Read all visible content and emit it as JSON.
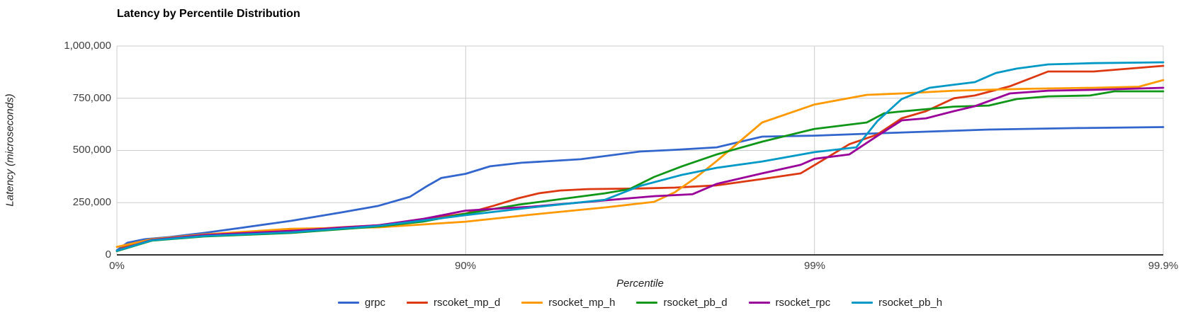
{
  "chart_data": {
    "type": "line",
    "title": "Latency by Percentile Distribution",
    "xlabel": "Percentile",
    "ylabel": "Latency (microseconds)",
    "x_scale": "hdr-percentile (position = log10(1/(1-p)) nines)",
    "xlim_nines": [
      0,
      3
    ],
    "ylim": [
      0,
      1000000
    ],
    "grid": true,
    "legend_position": "bottom",
    "axis_color": "#333333",
    "grid_color": "#cccccc",
    "xticks": [
      {
        "label": "0%",
        "nines": 0
      },
      {
        "label": "90%",
        "nines": 1
      },
      {
        "label": "99%",
        "nines": 2
      },
      {
        "label": "99.9%",
        "nines": 3
      }
    ],
    "yticks": [
      {
        "label": "0",
        "value": 0
      },
      {
        "label": "250,000",
        "value": 250000
      },
      {
        "label": "500,000",
        "value": 500000
      },
      {
        "label": "750,000",
        "value": 750000
      },
      {
        "label": "1,000,000",
        "value": 1000000
      }
    ],
    "series": [
      {
        "name": "grpc",
        "color": "#3366CC",
        "points": [
          [
            0,
            22000
          ],
          [
            0.03,
            58000
          ],
          [
            0.08,
            75000
          ],
          [
            0.15,
            85000
          ],
          [
            0.25,
            105000
          ],
          [
            0.35,
            128000
          ],
          [
            0.5,
            163000
          ],
          [
            0.65,
            205000
          ],
          [
            0.75,
            235000
          ],
          [
            0.84,
            278000
          ],
          [
            0.89,
            330000
          ],
          [
            0.93,
            368000
          ],
          [
            1,
            388000
          ],
          [
            1.07,
            424000
          ],
          [
            1.16,
            441000
          ],
          [
            1.33,
            458000
          ],
          [
            1.5,
            495000
          ],
          [
            1.6,
            503000
          ],
          [
            1.72,
            515000
          ],
          [
            1.85,
            566000
          ],
          [
            2,
            571000
          ],
          [
            2.2,
            583000
          ],
          [
            2.5,
            600000
          ],
          [
            2.75,
            607000
          ],
          [
            3,
            612000
          ]
        ]
      },
      {
        "name": "rscoket_mp_d",
        "color": "#DC3912",
        "points": [
          [
            0,
            18000
          ],
          [
            0.03,
            45000
          ],
          [
            0.1,
            72000
          ],
          [
            0.25,
            95000
          ],
          [
            0.5,
            118000
          ],
          [
            0.75,
            142000
          ],
          [
            0.88,
            170000
          ],
          [
            1,
            198000
          ],
          [
            1.08,
            235000
          ],
          [
            1.15,
            271000
          ],
          [
            1.21,
            295000
          ],
          [
            1.27,
            308000
          ],
          [
            1.35,
            315000
          ],
          [
            1.5,
            318000
          ],
          [
            1.6,
            322000
          ],
          [
            1.72,
            333000
          ],
          [
            1.85,
            363000
          ],
          [
            1.96,
            390000
          ],
          [
            2,
            430000
          ],
          [
            2.1,
            530000
          ],
          [
            2.18,
            576000
          ],
          [
            2.25,
            654000
          ],
          [
            2.32,
            688000
          ],
          [
            2.4,
            750000
          ],
          [
            2.46,
            763000
          ],
          [
            2.56,
            807000
          ],
          [
            2.67,
            878000
          ],
          [
            2.8,
            878000
          ],
          [
            3,
            905000
          ]
        ]
      },
      {
        "name": "rsocket_mp_h",
        "color": "#FF9900",
        "points": [
          [
            0,
            38000
          ],
          [
            0.1,
            75000
          ],
          [
            0.25,
            98000
          ],
          [
            0.5,
            125000
          ],
          [
            0.75,
            132000
          ],
          [
            1,
            159000
          ],
          [
            1.19,
            193000
          ],
          [
            1.4,
            227000
          ],
          [
            1.54,
            254000
          ],
          [
            1.6,
            300000
          ],
          [
            1.66,
            370000
          ],
          [
            1.72,
            450000
          ],
          [
            1.85,
            634000
          ],
          [
            2,
            720000
          ],
          [
            2.15,
            766000
          ],
          [
            2.25,
            773000
          ],
          [
            2.4,
            786000
          ],
          [
            2.6,
            795000
          ],
          [
            2.8,
            800000
          ],
          [
            2.93,
            805000
          ],
          [
            3,
            837000
          ]
        ]
      },
      {
        "name": "rsocket_pb_d",
        "color": "#109618",
        "points": [
          [
            0,
            18000
          ],
          [
            0.1,
            68000
          ],
          [
            0.25,
            88000
          ],
          [
            0.5,
            105000
          ],
          [
            0.75,
            136000
          ],
          [
            0.88,
            160000
          ],
          [
            1,
            197000
          ],
          [
            1.15,
            240000
          ],
          [
            1.29,
            271000
          ],
          [
            1.4,
            295000
          ],
          [
            1.47,
            315000
          ],
          [
            1.54,
            373000
          ],
          [
            1.62,
            424000
          ],
          [
            1.72,
            481000
          ],
          [
            1.85,
            542000
          ],
          [
            2,
            603000
          ],
          [
            2.15,
            634000
          ],
          [
            2.2,
            678000
          ],
          [
            2.24,
            685000
          ],
          [
            2.4,
            710000
          ],
          [
            2.5,
            715000
          ],
          [
            2.58,
            746000
          ],
          [
            2.67,
            759000
          ],
          [
            2.79,
            763000
          ],
          [
            2.86,
            783000
          ],
          [
            3,
            783000
          ]
        ]
      },
      {
        "name": "rsocket_rpc",
        "color": "#990099",
        "points": [
          [
            0,
            20000
          ],
          [
            0.1,
            72000
          ],
          [
            0.25,
            95000
          ],
          [
            0.5,
            115000
          ],
          [
            0.75,
            142000
          ],
          [
            0.88,
            173000
          ],
          [
            1,
            212000
          ],
          [
            1.19,
            231000
          ],
          [
            1.4,
            261000
          ],
          [
            1.54,
            281000
          ],
          [
            1.65,
            290000
          ],
          [
            1.72,
            340000
          ],
          [
            1.85,
            390000
          ],
          [
            1.96,
            431000
          ],
          [
            2,
            460000
          ],
          [
            2.1,
            481000
          ],
          [
            2.18,
            569000
          ],
          [
            2.25,
            644000
          ],
          [
            2.32,
            654000
          ],
          [
            2.4,
            688000
          ],
          [
            2.46,
            712000
          ],
          [
            2.56,
            773000
          ],
          [
            2.67,
            786000
          ],
          [
            2.8,
            790000
          ],
          [
            3,
            800000
          ]
        ]
      },
      {
        "name": "rsocket_pb_h",
        "color": "#0099C6",
        "points": [
          [
            0,
            20000
          ],
          [
            0.1,
            70000
          ],
          [
            0.25,
            90000
          ],
          [
            0.5,
            108000
          ],
          [
            0.75,
            139000
          ],
          [
            0.88,
            165000
          ],
          [
            1,
            190000
          ],
          [
            1.19,
            227000
          ],
          [
            1.4,
            264000
          ],
          [
            1.5,
            330000
          ],
          [
            1.62,
            383000
          ],
          [
            1.72,
            417000
          ],
          [
            1.85,
            447000
          ],
          [
            2,
            492000
          ],
          [
            2.12,
            515000
          ],
          [
            2.18,
            640000
          ],
          [
            2.25,
            746000
          ],
          [
            2.33,
            800000
          ],
          [
            2.4,
            815000
          ],
          [
            2.46,
            827000
          ],
          [
            2.52,
            871000
          ],
          [
            2.58,
            892000
          ],
          [
            2.67,
            912000
          ],
          [
            2.8,
            918000
          ],
          [
            3,
            922000
          ]
        ]
      }
    ]
  }
}
